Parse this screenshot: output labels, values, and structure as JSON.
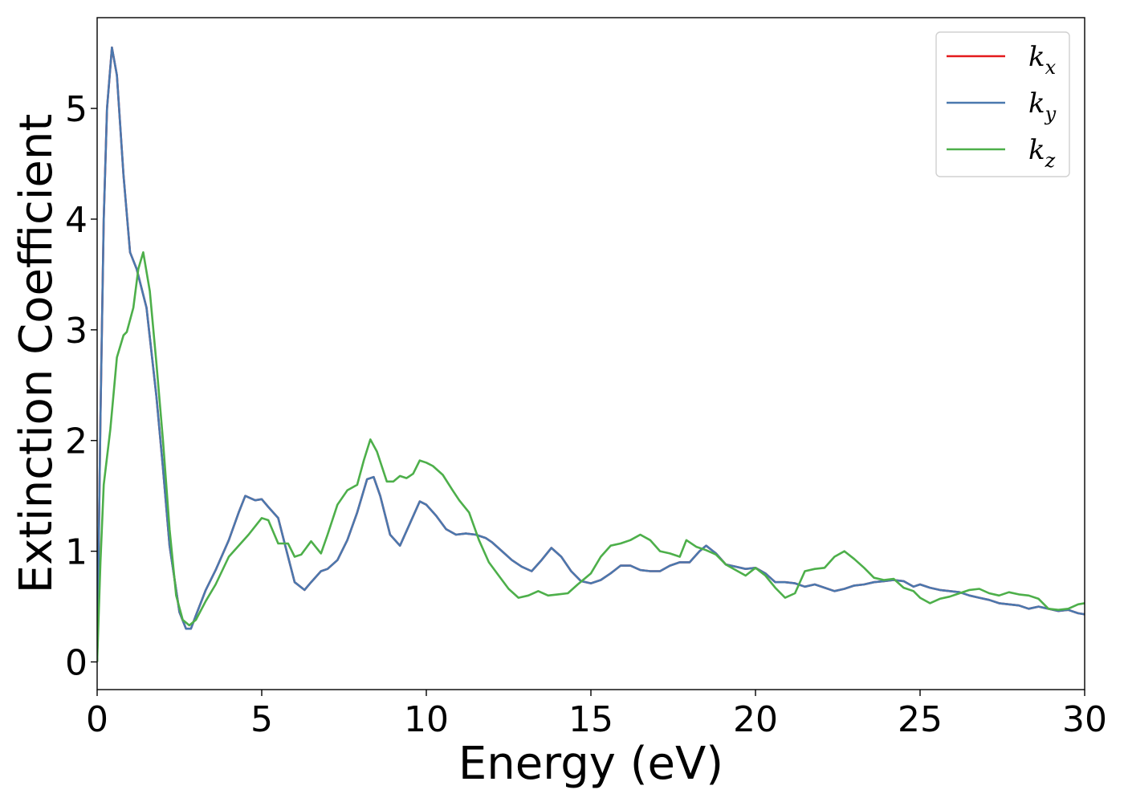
{
  "chart_data": {
    "type": "line",
    "title": "",
    "xlabel": "Energy (eV)",
    "ylabel": "Extinction Coefficient",
    "xlim": [
      0,
      30
    ],
    "ylim": [
      -0.25,
      5.82
    ],
    "xticks": [
      0,
      5,
      10,
      15,
      20,
      25,
      30
    ],
    "yticks": [
      0,
      1,
      2,
      3,
      4,
      5
    ],
    "grid": false,
    "legend_position": "top-right",
    "series": [
      {
        "name": "k_x",
        "legend_base": "k",
        "legend_sub": "x",
        "color": "#e41a1c",
        "x": [
          0,
          0.1,
          0.2,
          0.3,
          0.45,
          0.6,
          0.8,
          1.0,
          1.2,
          1.5,
          1.8,
          2.0,
          2.2,
          2.5,
          2.7,
          2.85,
          3.0,
          3.3,
          3.6,
          4.0,
          4.3,
          4.5,
          4.8,
          5.0,
          5.2,
          5.5,
          5.8,
          6.0,
          6.3,
          6.5,
          6.8,
          7.0,
          7.3,
          7.6,
          7.9,
          8.2,
          8.4,
          8.6,
          8.9,
          9.2,
          9.5,
          9.8,
          10.0,
          10.3,
          10.6,
          10.9,
          11.2,
          11.5,
          11.8,
          12.0,
          12.3,
          12.6,
          12.9,
          13.2,
          13.5,
          13.8,
          14.1,
          14.4,
          14.7,
          15.0,
          15.3,
          15.6,
          15.9,
          16.2,
          16.5,
          16.8,
          17.1,
          17.4,
          17.7,
          18.0,
          18.3,
          18.5,
          18.8,
          19.1,
          19.4,
          19.7,
          20.0,
          20.3,
          20.6,
          20.9,
          21.2,
          21.5,
          21.8,
          22.1,
          22.4,
          22.7,
          23.0,
          23.3,
          23.6,
          23.9,
          24.2,
          24.5,
          24.8,
          25.0,
          25.3,
          25.6,
          25.9,
          26.2,
          26.5,
          26.8,
          27.1,
          27.4,
          27.7,
          28.0,
          28.3,
          28.6,
          28.9,
          29.2,
          29.5,
          29.8,
          30.0
        ],
        "y": [
          0,
          2.2,
          4.0,
          5.0,
          5.55,
          5.3,
          4.4,
          3.7,
          3.55,
          3.2,
          2.4,
          1.75,
          1.05,
          0.45,
          0.3,
          0.3,
          0.42,
          0.65,
          0.83,
          1.1,
          1.35,
          1.5,
          1.46,
          1.47,
          1.4,
          1.3,
          0.95,
          0.72,
          0.65,
          0.72,
          0.82,
          0.84,
          0.92,
          1.1,
          1.35,
          1.65,
          1.67,
          1.5,
          1.15,
          1.05,
          1.25,
          1.45,
          1.42,
          1.32,
          1.2,
          1.15,
          1.16,
          1.15,
          1.12,
          1.08,
          1.0,
          0.92,
          0.86,
          0.82,
          0.92,
          1.03,
          0.95,
          0.82,
          0.73,
          0.71,
          0.74,
          0.8,
          0.87,
          0.87,
          0.83,
          0.82,
          0.82,
          0.87,
          0.9,
          0.9,
          1.0,
          1.05,
          0.98,
          0.88,
          0.86,
          0.84,
          0.85,
          0.8,
          0.72,
          0.72,
          0.71,
          0.68,
          0.7,
          0.67,
          0.64,
          0.66,
          0.69,
          0.7,
          0.72,
          0.73,
          0.74,
          0.73,
          0.68,
          0.7,
          0.67,
          0.65,
          0.64,
          0.63,
          0.6,
          0.58,
          0.56,
          0.53,
          0.52,
          0.51,
          0.48,
          0.5,
          0.48,
          0.46,
          0.47,
          0.44,
          0.43
        ]
      },
      {
        "name": "k_y",
        "legend_base": "k",
        "legend_sub": "y",
        "color": "#4a78ae",
        "x": [
          0,
          0.1,
          0.2,
          0.3,
          0.45,
          0.6,
          0.8,
          1.0,
          1.2,
          1.5,
          1.8,
          2.0,
          2.2,
          2.5,
          2.7,
          2.85,
          3.0,
          3.3,
          3.6,
          4.0,
          4.3,
          4.5,
          4.8,
          5.0,
          5.2,
          5.5,
          5.8,
          6.0,
          6.3,
          6.5,
          6.8,
          7.0,
          7.3,
          7.6,
          7.9,
          8.2,
          8.4,
          8.6,
          8.9,
          9.2,
          9.5,
          9.8,
          10.0,
          10.3,
          10.6,
          10.9,
          11.2,
          11.5,
          11.8,
          12.0,
          12.3,
          12.6,
          12.9,
          13.2,
          13.5,
          13.8,
          14.1,
          14.4,
          14.7,
          15.0,
          15.3,
          15.6,
          15.9,
          16.2,
          16.5,
          16.8,
          17.1,
          17.4,
          17.7,
          18.0,
          18.3,
          18.5,
          18.8,
          19.1,
          19.4,
          19.7,
          20.0,
          20.3,
          20.6,
          20.9,
          21.2,
          21.5,
          21.8,
          22.1,
          22.4,
          22.7,
          23.0,
          23.3,
          23.6,
          23.9,
          24.2,
          24.5,
          24.8,
          25.0,
          25.3,
          25.6,
          25.9,
          26.2,
          26.5,
          26.8,
          27.1,
          27.4,
          27.7,
          28.0,
          28.3,
          28.6,
          28.9,
          29.2,
          29.5,
          29.8,
          30.0
        ],
        "y": [
          0,
          2.2,
          4.0,
          5.0,
          5.55,
          5.3,
          4.4,
          3.7,
          3.55,
          3.2,
          2.4,
          1.75,
          1.05,
          0.45,
          0.3,
          0.3,
          0.42,
          0.65,
          0.83,
          1.1,
          1.35,
          1.5,
          1.46,
          1.47,
          1.4,
          1.3,
          0.95,
          0.72,
          0.65,
          0.72,
          0.82,
          0.84,
          0.92,
          1.1,
          1.35,
          1.65,
          1.67,
          1.5,
          1.15,
          1.05,
          1.25,
          1.45,
          1.42,
          1.32,
          1.2,
          1.15,
          1.16,
          1.15,
          1.12,
          1.08,
          1.0,
          0.92,
          0.86,
          0.82,
          0.92,
          1.03,
          0.95,
          0.82,
          0.73,
          0.71,
          0.74,
          0.8,
          0.87,
          0.87,
          0.83,
          0.82,
          0.82,
          0.87,
          0.9,
          0.9,
          1.0,
          1.05,
          0.98,
          0.88,
          0.86,
          0.84,
          0.85,
          0.8,
          0.72,
          0.72,
          0.71,
          0.68,
          0.7,
          0.67,
          0.64,
          0.66,
          0.69,
          0.7,
          0.72,
          0.73,
          0.74,
          0.73,
          0.68,
          0.7,
          0.67,
          0.65,
          0.64,
          0.63,
          0.6,
          0.58,
          0.56,
          0.53,
          0.52,
          0.51,
          0.48,
          0.5,
          0.48,
          0.46,
          0.47,
          0.44,
          0.43
        ]
      },
      {
        "name": "k_z",
        "legend_base": "k",
        "legend_sub": "z",
        "color": "#4daf4a",
        "x": [
          0,
          0.1,
          0.2,
          0.4,
          0.6,
          0.8,
          0.9,
          1.1,
          1.25,
          1.4,
          1.6,
          1.8,
          2.0,
          2.2,
          2.4,
          2.6,
          2.8,
          3.0,
          3.3,
          3.6,
          4.0,
          4.3,
          4.6,
          5.0,
          5.2,
          5.5,
          5.8,
          6.0,
          6.2,
          6.5,
          6.8,
          7.0,
          7.3,
          7.6,
          7.9,
          8.1,
          8.3,
          8.5,
          8.8,
          9.0,
          9.2,
          9.4,
          9.6,
          9.8,
          10.0,
          10.2,
          10.5,
          10.8,
          11.0,
          11.3,
          11.6,
          11.9,
          12.2,
          12.5,
          12.8,
          13.1,
          13.4,
          13.7,
          14.0,
          14.3,
          14.6,
          15.0,
          15.3,
          15.6,
          15.9,
          16.2,
          16.5,
          16.8,
          17.1,
          17.4,
          17.7,
          17.9,
          18.2,
          18.5,
          18.8,
          19.1,
          19.4,
          19.7,
          20.0,
          20.3,
          20.6,
          20.9,
          21.2,
          21.5,
          21.8,
          22.1,
          22.4,
          22.7,
          23.0,
          23.3,
          23.6,
          23.9,
          24.2,
          24.5,
          24.8,
          25.0,
          25.3,
          25.6,
          25.9,
          26.2,
          26.5,
          26.8,
          27.1,
          27.4,
          27.7,
          28.0,
          28.3,
          28.6,
          28.9,
          29.2,
          29.5,
          29.8,
          30.0
        ],
        "y": [
          0,
          0.9,
          1.6,
          2.1,
          2.75,
          2.95,
          2.98,
          3.2,
          3.55,
          3.7,
          3.35,
          2.7,
          2.0,
          1.2,
          0.6,
          0.38,
          0.33,
          0.38,
          0.55,
          0.7,
          0.95,
          1.05,
          1.15,
          1.3,
          1.28,
          1.07,
          1.07,
          0.95,
          0.97,
          1.09,
          0.98,
          1.15,
          1.42,
          1.55,
          1.6,
          1.82,
          2.01,
          1.9,
          1.63,
          1.63,
          1.68,
          1.66,
          1.7,
          1.82,
          1.8,
          1.77,
          1.69,
          1.55,
          1.46,
          1.35,
          1.1,
          0.9,
          0.78,
          0.66,
          0.58,
          0.6,
          0.64,
          0.6,
          0.61,
          0.62,
          0.7,
          0.8,
          0.95,
          1.05,
          1.07,
          1.1,
          1.15,
          1.1,
          1.0,
          0.98,
          0.95,
          1.1,
          1.04,
          1.01,
          0.97,
          0.88,
          0.83,
          0.78,
          0.85,
          0.78,
          0.67,
          0.58,
          0.62,
          0.82,
          0.84,
          0.85,
          0.95,
          1.0,
          0.93,
          0.85,
          0.76,
          0.74,
          0.75,
          0.67,
          0.64,
          0.58,
          0.53,
          0.57,
          0.59,
          0.62,
          0.65,
          0.66,
          0.62,
          0.6,
          0.63,
          0.61,
          0.6,
          0.57,
          0.48,
          0.47,
          0.48,
          0.52,
          0.53
        ]
      }
    ]
  }
}
